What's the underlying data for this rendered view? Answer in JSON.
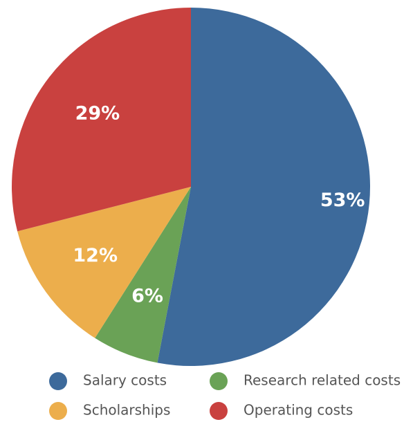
{
  "chart_data": {
    "type": "pie",
    "categories": [
      "Salary costs",
      "Research related costs",
      "Scholarships",
      "Operating costs"
    ],
    "values": [
      53,
      6,
      12,
      29
    ],
    "value_labels": [
      "53%",
      "6%",
      "12%",
      "29%"
    ],
    "colors": [
      "#3d6a9b",
      "#6aa256",
      "#ecae4c",
      "#c9413f"
    ]
  }
}
